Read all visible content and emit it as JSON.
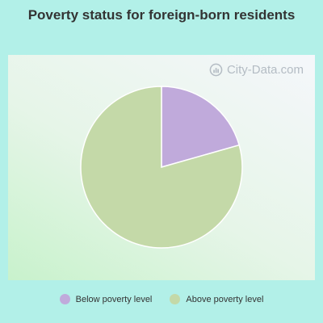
{
  "chart_data": {
    "type": "pie",
    "title": "Poverty status for foreign-born residents",
    "categories": [
      "Below poverty level",
      "Above poverty level"
    ],
    "values": [
      20.6,
      79.4
    ],
    "colors": [
      "#c0aadb",
      "#c4d9a8"
    ],
    "legend_position": "bottom"
  },
  "watermark": {
    "text": "City-Data.com",
    "icon": "city-data-logo-icon"
  }
}
